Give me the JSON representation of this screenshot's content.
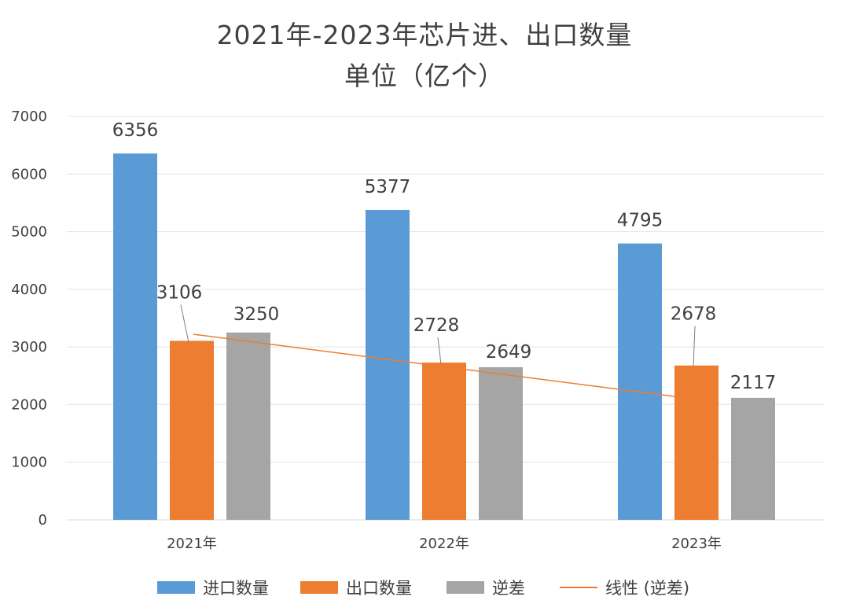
{
  "chart_data": {
    "type": "bar",
    "title": "2021年-2023年芯片进、出口数量",
    "subtitle": "单位（亿个）",
    "categories": [
      "2021年",
      "2022年",
      "2023年"
    ],
    "series": [
      {
        "name": "进口数量",
        "color": "#5b9bd5",
        "values": [
          6356,
          5377,
          4795
        ]
      },
      {
        "name": "出口数量",
        "color": "#ed7d31",
        "values": [
          3106,
          2728,
          2678
        ]
      },
      {
        "name": "逆差",
        "color": "#a5a5a5",
        "values": [
          3250,
          2649,
          2117
        ]
      }
    ],
    "trendline": {
      "name": "线性 (逆差)",
      "color": "#ed7d31",
      "of_series": "逆差",
      "start_value": 3220,
      "end_value": 2140
    },
    "ylim": [
      0,
      7000
    ],
    "yticks": [
      0,
      1000,
      2000,
      3000,
      4000,
      5000,
      6000,
      7000
    ],
    "grid": true,
    "legend_position": "bottom",
    "xlabel": "",
    "ylabel": ""
  }
}
